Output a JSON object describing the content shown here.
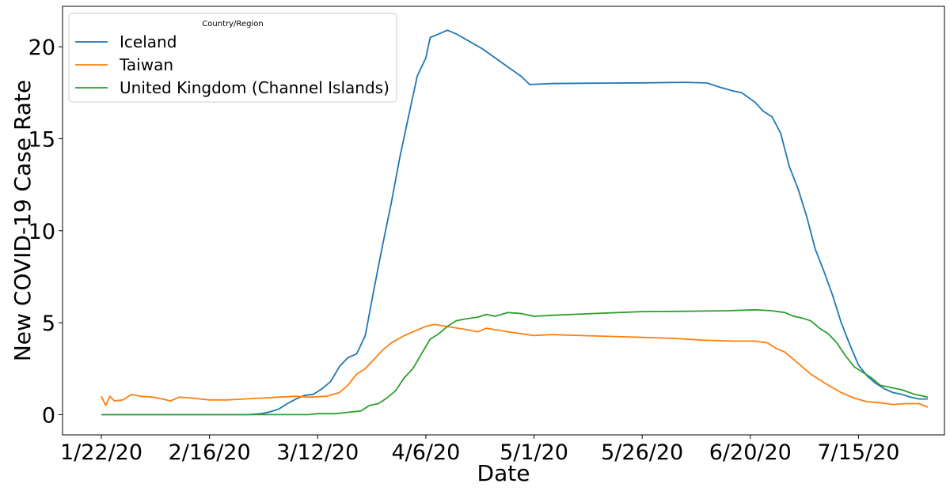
{
  "chart_data": {
    "type": "line",
    "xlabel": "Date",
    "ylabel": "New COVID-19 Case Rate",
    "legend_title": "Country/Region",
    "legend_position": "top-left",
    "grid": false,
    "x_range": [
      "1/22/20",
      "7/31/20"
    ],
    "ylim": [
      -1.1,
      22.2
    ],
    "x_ticks": [
      "1/22/20",
      "2/16/20",
      "3/12/20",
      "4/6/20",
      "5/1/20",
      "5/26/20",
      "6/20/20",
      "7/15/20"
    ],
    "y_ticks": [
      0,
      5,
      10,
      15,
      20
    ],
    "series": [
      {
        "name": "Iceland",
        "color": "#1f77b4",
        "points": [
          [
            "1/22/20",
            0
          ],
          [
            "2/25/20",
            0
          ],
          [
            "2/28/20",
            0.05
          ],
          [
            "3/1/20",
            0.15
          ],
          [
            "3/3/20",
            0.3
          ],
          [
            "3/5/20",
            0.6
          ],
          [
            "3/7/20",
            0.85
          ],
          [
            "3/9/20",
            1.05
          ],
          [
            "3/11/20",
            1.1
          ],
          [
            "3/13/20",
            1.4
          ],
          [
            "3/15/20",
            1.8
          ],
          [
            "3/17/20",
            2.6
          ],
          [
            "3/19/20",
            3.1
          ],
          [
            "3/21/20",
            3.3
          ],
          [
            "3/23/20",
            4.3
          ],
          [
            "3/25/20",
            6.8
          ],
          [
            "3/27/20",
            9.2
          ],
          [
            "3/29/20",
            11.5
          ],
          [
            "3/31/20",
            14.0
          ],
          [
            "4/2/20",
            16.2
          ],
          [
            "4/4/20",
            18.4
          ],
          [
            "4/6/20",
            19.4
          ],
          [
            "4/7/20",
            20.5
          ],
          [
            "4/9/20",
            20.7
          ],
          [
            "4/11/20",
            20.9
          ],
          [
            "4/13/20",
            20.7
          ],
          [
            "4/16/20",
            20.3
          ],
          [
            "4/19/20",
            19.9
          ],
          [
            "4/22/20",
            19.4
          ],
          [
            "4/25/20",
            18.9
          ],
          [
            "4/28/20",
            18.4
          ],
          [
            "4/30/20",
            17.95
          ],
          [
            "5/5/20",
            18.0
          ],
          [
            "5/15/20",
            18.02
          ],
          [
            "5/26/20",
            18.04
          ],
          [
            "6/5/20",
            18.07
          ],
          [
            "6/10/20",
            18.03
          ],
          [
            "6/13/20",
            17.8
          ],
          [
            "6/16/20",
            17.6
          ],
          [
            "6/18/20",
            17.5
          ],
          [
            "6/21/20",
            17.0
          ],
          [
            "6/23/20",
            16.5
          ],
          [
            "6/25/20",
            16.2
          ],
          [
            "6/27/20",
            15.3
          ],
          [
            "6/29/20",
            13.5
          ],
          [
            "7/1/20",
            12.3
          ],
          [
            "7/3/20",
            10.8
          ],
          [
            "7/5/20",
            9.0
          ],
          [
            "7/7/20",
            7.8
          ],
          [
            "7/9/20",
            6.5
          ],
          [
            "7/11/20",
            5.0
          ],
          [
            "7/13/20",
            3.8
          ],
          [
            "7/15/20",
            2.7
          ],
          [
            "7/17/20",
            2.1
          ],
          [
            "7/19/20",
            1.7
          ],
          [
            "7/21/20",
            1.4
          ],
          [
            "7/23/20",
            1.2
          ],
          [
            "7/25/20",
            1.1
          ],
          [
            "7/27/20",
            0.95
          ],
          [
            "7/29/20",
            0.85
          ],
          [
            "7/31/20",
            0.85
          ]
        ]
      },
      {
        "name": "Taiwan",
        "color": "#ff7f0e",
        "points": [
          [
            "1/22/20",
            1.0
          ],
          [
            "1/23/20",
            0.5
          ],
          [
            "1/24/20",
            1.0
          ],
          [
            "1/25/20",
            0.75
          ],
          [
            "1/27/20",
            0.8
          ],
          [
            "1/29/20",
            1.1
          ],
          [
            "1/31/20",
            1.0
          ],
          [
            "2/3/20",
            0.95
          ],
          [
            "2/5/20",
            0.85
          ],
          [
            "2/7/20",
            0.75
          ],
          [
            "2/9/20",
            0.95
          ],
          [
            "2/12/20",
            0.9
          ],
          [
            "2/16/20",
            0.8
          ],
          [
            "2/20/20",
            0.8
          ],
          [
            "2/24/20",
            0.85
          ],
          [
            "2/28/20",
            0.9
          ],
          [
            "3/3/20",
            0.95
          ],
          [
            "3/7/20",
            1.0
          ],
          [
            "3/10/20",
            0.95
          ],
          [
            "3/14/20",
            1.0
          ],
          [
            "3/17/20",
            1.2
          ],
          [
            "3/19/20",
            1.6
          ],
          [
            "3/21/20",
            2.2
          ],
          [
            "3/23/20",
            2.5
          ],
          [
            "3/25/20",
            3.0
          ],
          [
            "3/27/20",
            3.5
          ],
          [
            "3/29/20",
            3.9
          ],
          [
            "4/1/20",
            4.3
          ],
          [
            "4/4/20",
            4.6
          ],
          [
            "4/6/20",
            4.8
          ],
          [
            "4/8/20",
            4.9
          ],
          [
            "4/12/20",
            4.75
          ],
          [
            "4/16/20",
            4.6
          ],
          [
            "4/18/20",
            4.5
          ],
          [
            "4/20/20",
            4.7
          ],
          [
            "4/25/20",
            4.5
          ],
          [
            "5/1/20",
            4.3
          ],
          [
            "5/5/20",
            4.35
          ],
          [
            "5/12/20",
            4.3
          ],
          [
            "5/19/20",
            4.25
          ],
          [
            "5/26/20",
            4.2
          ],
          [
            "6/2/20",
            4.15
          ],
          [
            "6/9/20",
            4.05
          ],
          [
            "6/16/20",
            4.0
          ],
          [
            "6/21/20",
            4.0
          ],
          [
            "6/24/20",
            3.9
          ],
          [
            "6/26/20",
            3.6
          ],
          [
            "6/28/20",
            3.4
          ],
          [
            "6/30/20",
            3.0
          ],
          [
            "7/2/20",
            2.6
          ],
          [
            "7/4/20",
            2.2
          ],
          [
            "7/6/20",
            1.9
          ],
          [
            "7/8/20",
            1.6
          ],
          [
            "7/11/20",
            1.2
          ],
          [
            "7/14/20",
            0.9
          ],
          [
            "7/17/20",
            0.7
          ],
          [
            "7/20/20",
            0.65
          ],
          [
            "7/23/20",
            0.55
          ],
          [
            "7/26/20",
            0.6
          ],
          [
            "7/29/20",
            0.6
          ],
          [
            "7/31/20",
            0.4
          ]
        ]
      },
      {
        "name": "United Kingdom (Channel Islands)",
        "color": "#2ca02c",
        "points": [
          [
            "1/22/20",
            0
          ],
          [
            "3/10/20",
            0
          ],
          [
            "3/12/20",
            0.05
          ],
          [
            "3/16/20",
            0.05
          ],
          [
            "3/18/20",
            0.1
          ],
          [
            "3/20/20",
            0.15
          ],
          [
            "3/22/20",
            0.2
          ],
          [
            "3/24/20",
            0.5
          ],
          [
            "3/26/20",
            0.6
          ],
          [
            "3/28/20",
            0.9
          ],
          [
            "3/30/20",
            1.3
          ],
          [
            "4/1/20",
            2.0
          ],
          [
            "4/3/20",
            2.5
          ],
          [
            "4/5/20",
            3.3
          ],
          [
            "4/7/20",
            4.1
          ],
          [
            "4/9/20",
            4.4
          ],
          [
            "4/11/20",
            4.8
          ],
          [
            "4/13/20",
            5.1
          ],
          [
            "4/15/20",
            5.2
          ],
          [
            "4/18/20",
            5.3
          ],
          [
            "4/20/20",
            5.45
          ],
          [
            "4/22/20",
            5.35
          ],
          [
            "4/25/20",
            5.55
          ],
          [
            "4/28/20",
            5.5
          ],
          [
            "5/1/20",
            5.35
          ],
          [
            "5/5/20",
            5.4
          ],
          [
            "5/15/20",
            5.5
          ],
          [
            "5/26/20",
            5.6
          ],
          [
            "6/5/20",
            5.62
          ],
          [
            "6/15/20",
            5.65
          ],
          [
            "6/21/20",
            5.7
          ],
          [
            "6/25/20",
            5.65
          ],
          [
            "6/28/20",
            5.55
          ],
          [
            "6/30/20",
            5.35
          ],
          [
            "7/2/20",
            5.25
          ],
          [
            "7/4/20",
            5.1
          ],
          [
            "7/6/20",
            4.7
          ],
          [
            "7/8/20",
            4.4
          ],
          [
            "7/10/20",
            3.9
          ],
          [
            "7/12/20",
            3.2
          ],
          [
            "7/14/20",
            2.6
          ],
          [
            "7/16/20",
            2.3
          ],
          [
            "7/18/20",
            2.0
          ],
          [
            "7/20/20",
            1.6
          ],
          [
            "7/22/20",
            1.5
          ],
          [
            "7/25/20",
            1.35
          ],
          [
            "7/28/20",
            1.1
          ],
          [
            "7/31/20",
            0.95
          ]
        ]
      }
    ]
  }
}
